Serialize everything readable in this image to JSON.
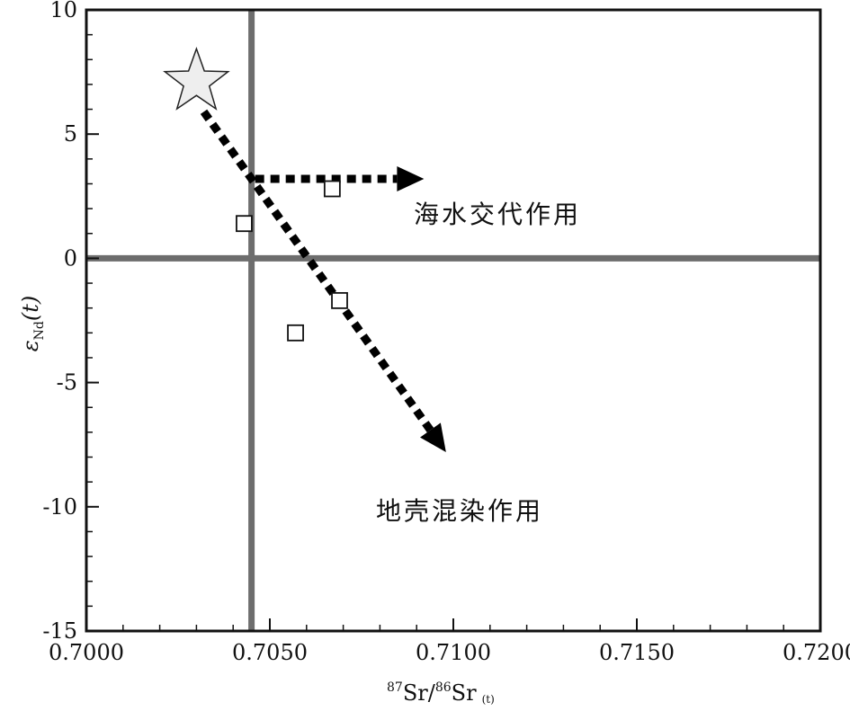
{
  "chart_data": {
    "type": "scatter",
    "title": "",
    "xlabel": {
      "sup1": "87",
      "main1": "Sr/",
      "sup2": "86",
      "main2": "Sr",
      "sub": "(t)"
    },
    "ylabel": {
      "main": "ε",
      "sub": "Nd",
      "suffix": "(t)"
    },
    "xlim": [
      0.7,
      0.72
    ],
    "ylim": [
      -15,
      10
    ],
    "xticks": [
      0.7,
      0.705,
      0.71,
      0.715,
      0.72
    ],
    "xtick_labels": [
      "0.7000",
      "0.7050",
      "0.7100",
      "0.7150",
      "0.7200"
    ],
    "yticks": [
      -15,
      -10,
      -5,
      0,
      5,
      10
    ],
    "ytick_labels": [
      "-15",
      "-10",
      "-5",
      "0",
      "5",
      "10"
    ],
    "grid": false,
    "reference_lines": {
      "x": 0.7045,
      "y": 0
    },
    "series": [
      {
        "marker": "square-open",
        "points": [
          {
            "x": 0.7043,
            "y": 1.4
          },
          {
            "x": 0.7067,
            "y": 2.8
          },
          {
            "x": 0.7069,
            "y": -1.7
          },
          {
            "x": 0.7057,
            "y": -3.0
          }
        ]
      }
    ],
    "star_marker": {
      "x": 0.703,
      "y": 7.1
    },
    "arrows": [
      {
        "from": [
          0.7032,
          5.9
        ],
        "to": [
          0.7098,
          -7.8
        ],
        "label": "地壳混染作用"
      },
      {
        "from": [
          0.7046,
          3.2
        ],
        "to": [
          0.7092,
          3.2
        ],
        "label": "海水交代作用"
      }
    ],
    "annotations": [
      {
        "text": "海水交代作用",
        "x": 0.7095,
        "y": 1.7
      },
      {
        "text": "地壳混染作用",
        "x": 0.7095,
        "y": -10.1
      }
    ],
    "colors": {
      "reference_line": "#6d6d6d",
      "arrow": "#000000",
      "star_fill": "#eeeeee"
    }
  }
}
